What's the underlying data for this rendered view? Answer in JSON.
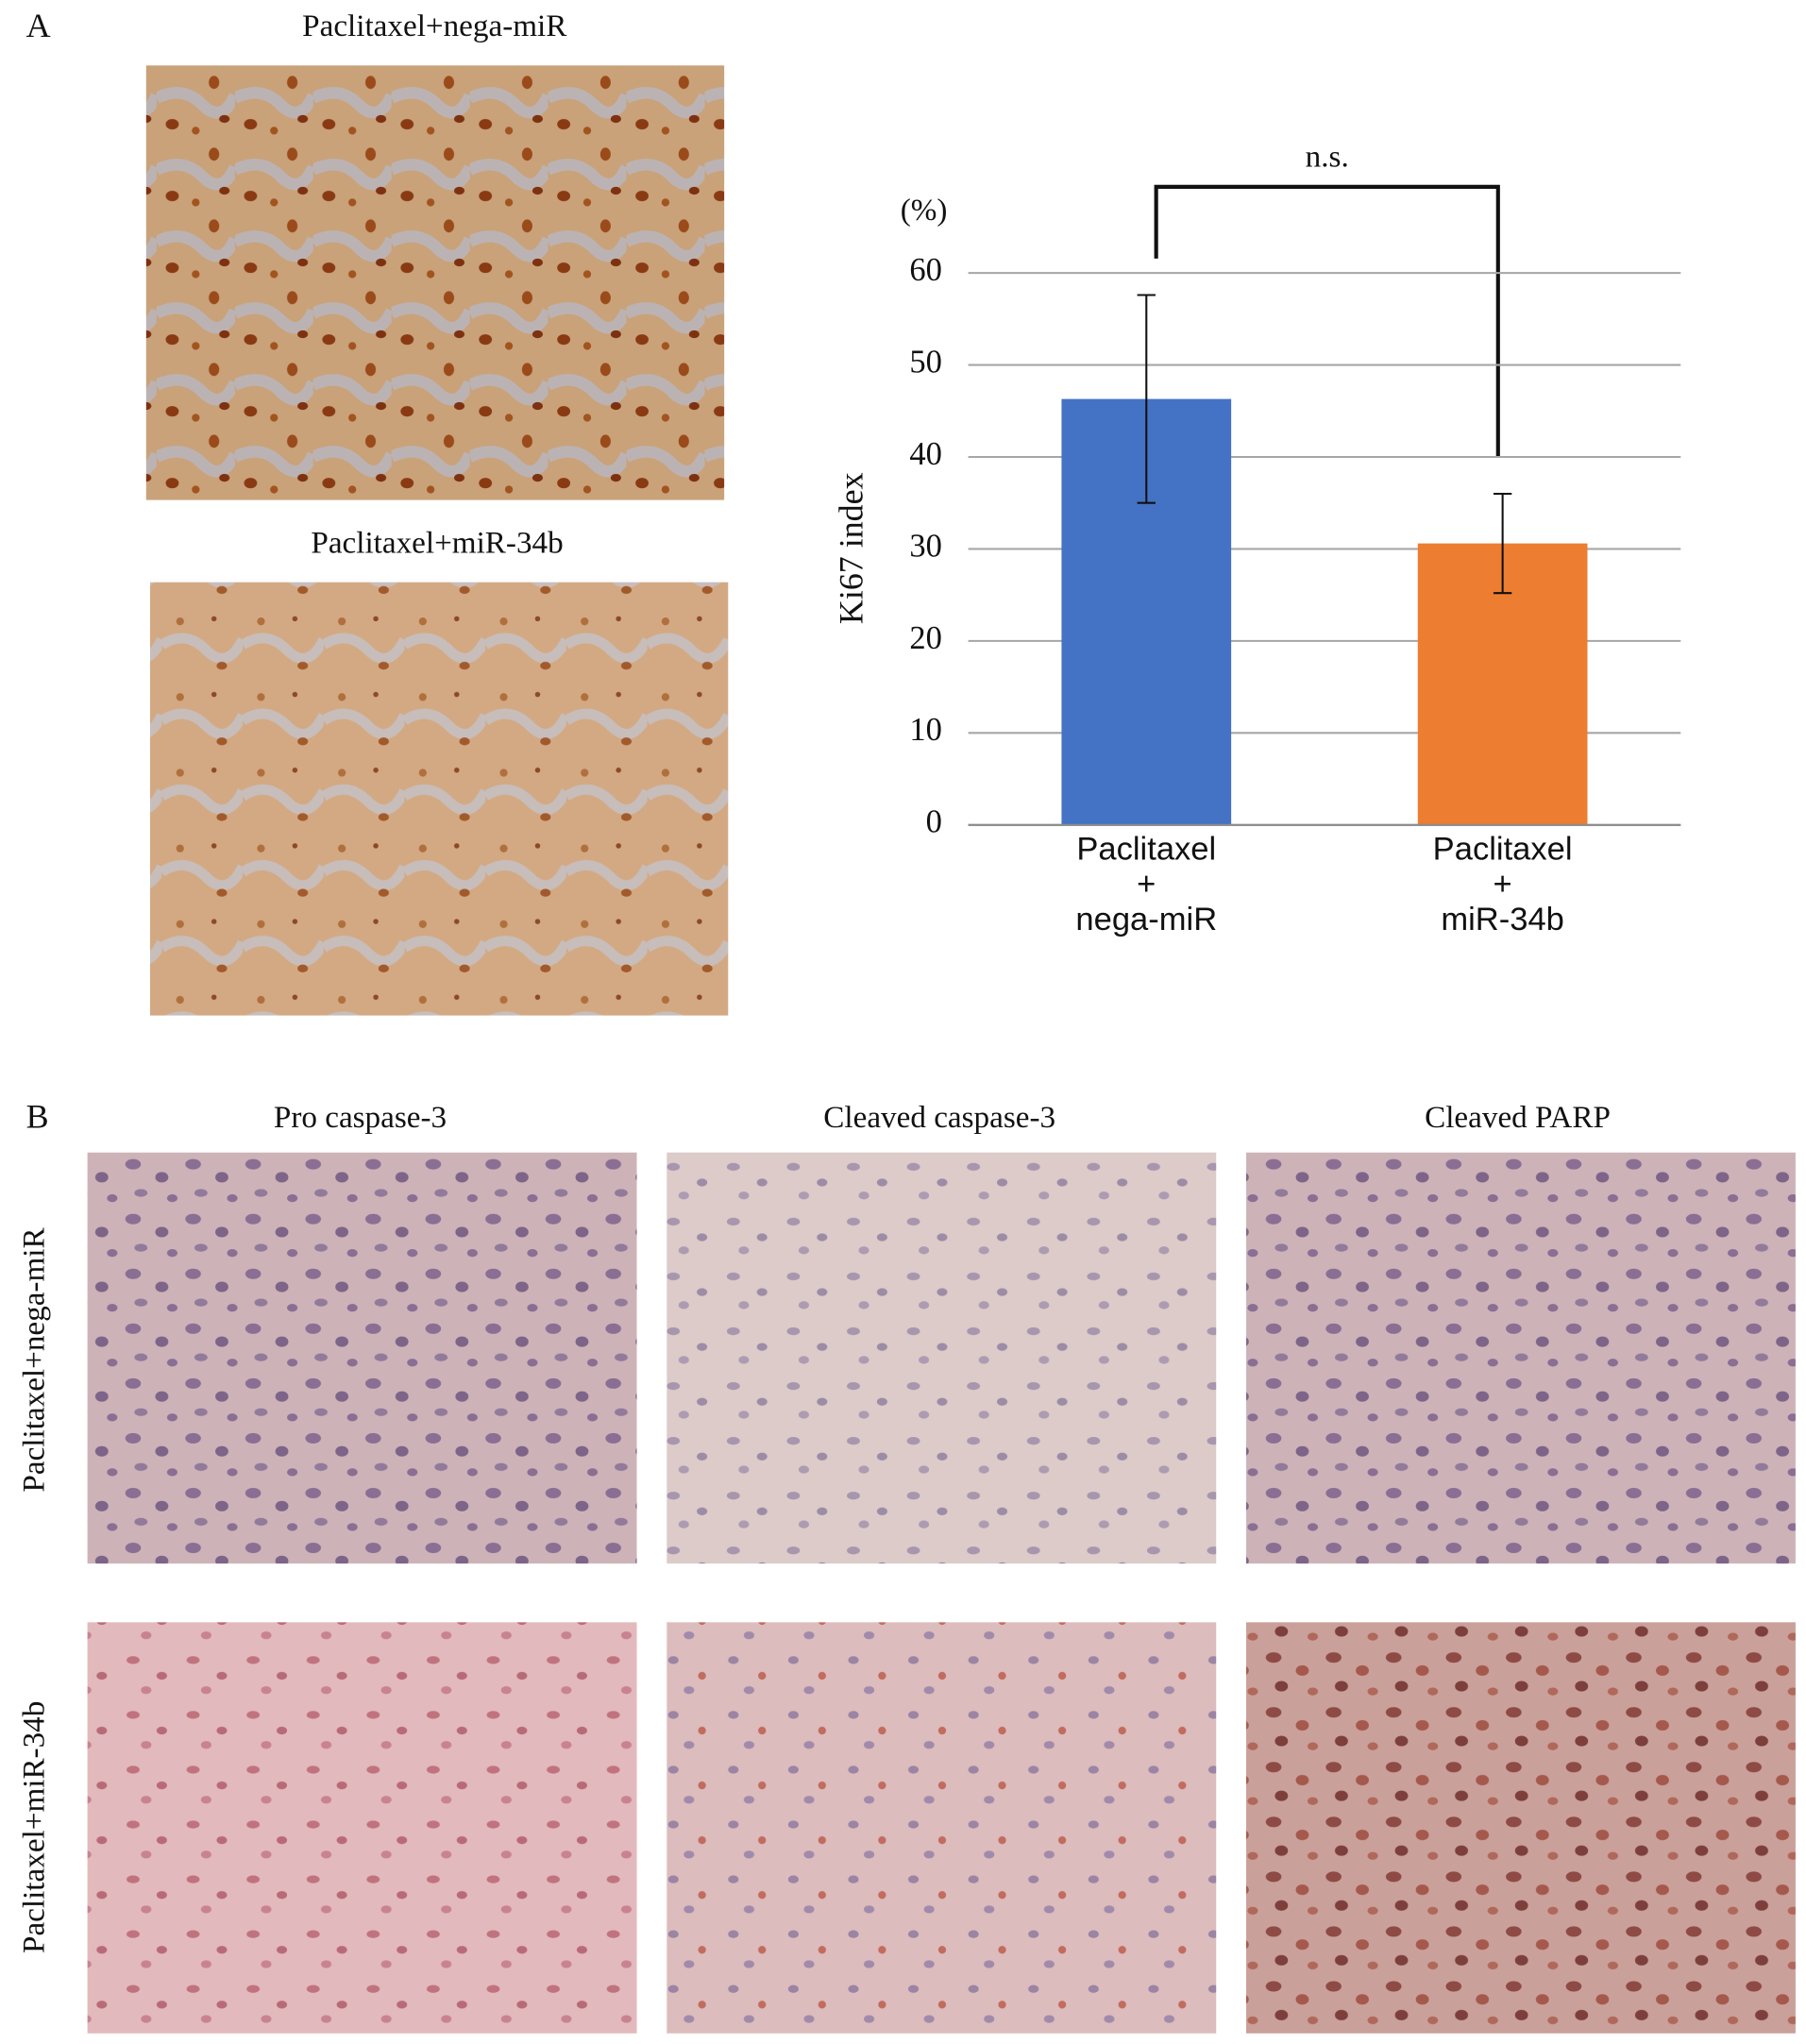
{
  "panel_a": {
    "label": "A",
    "image_titles": [
      "Paclitaxel+nega-miR",
      "Paclitaxel+miR-34b"
    ]
  },
  "chart_data": {
    "type": "bar",
    "y_label": "Ki67 index",
    "y_unit": "(%)",
    "annotation": "n.s.",
    "categories": [
      "Paclitaxel\n+\nnega-miR",
      "Paclitaxel\n+\nmiR-34b"
    ],
    "values": [
      46.3,
      30.6
    ],
    "errors": [
      11.3,
      5.4
    ],
    "colors": [
      "#4472c4",
      "#ed7d31"
    ],
    "ylim": [
      0,
      60
    ],
    "yticks": [
      0,
      10,
      20,
      30,
      40,
      50,
      60
    ],
    "grid": true
  },
  "panel_b": {
    "label": "B",
    "column_titles": [
      "Pro caspase-3",
      "Cleaved caspase-3",
      "Cleaved PARP"
    ],
    "row_titles": [
      "Paclitaxel+nega-miR",
      "Paclitaxel+miR-34b"
    ]
  }
}
